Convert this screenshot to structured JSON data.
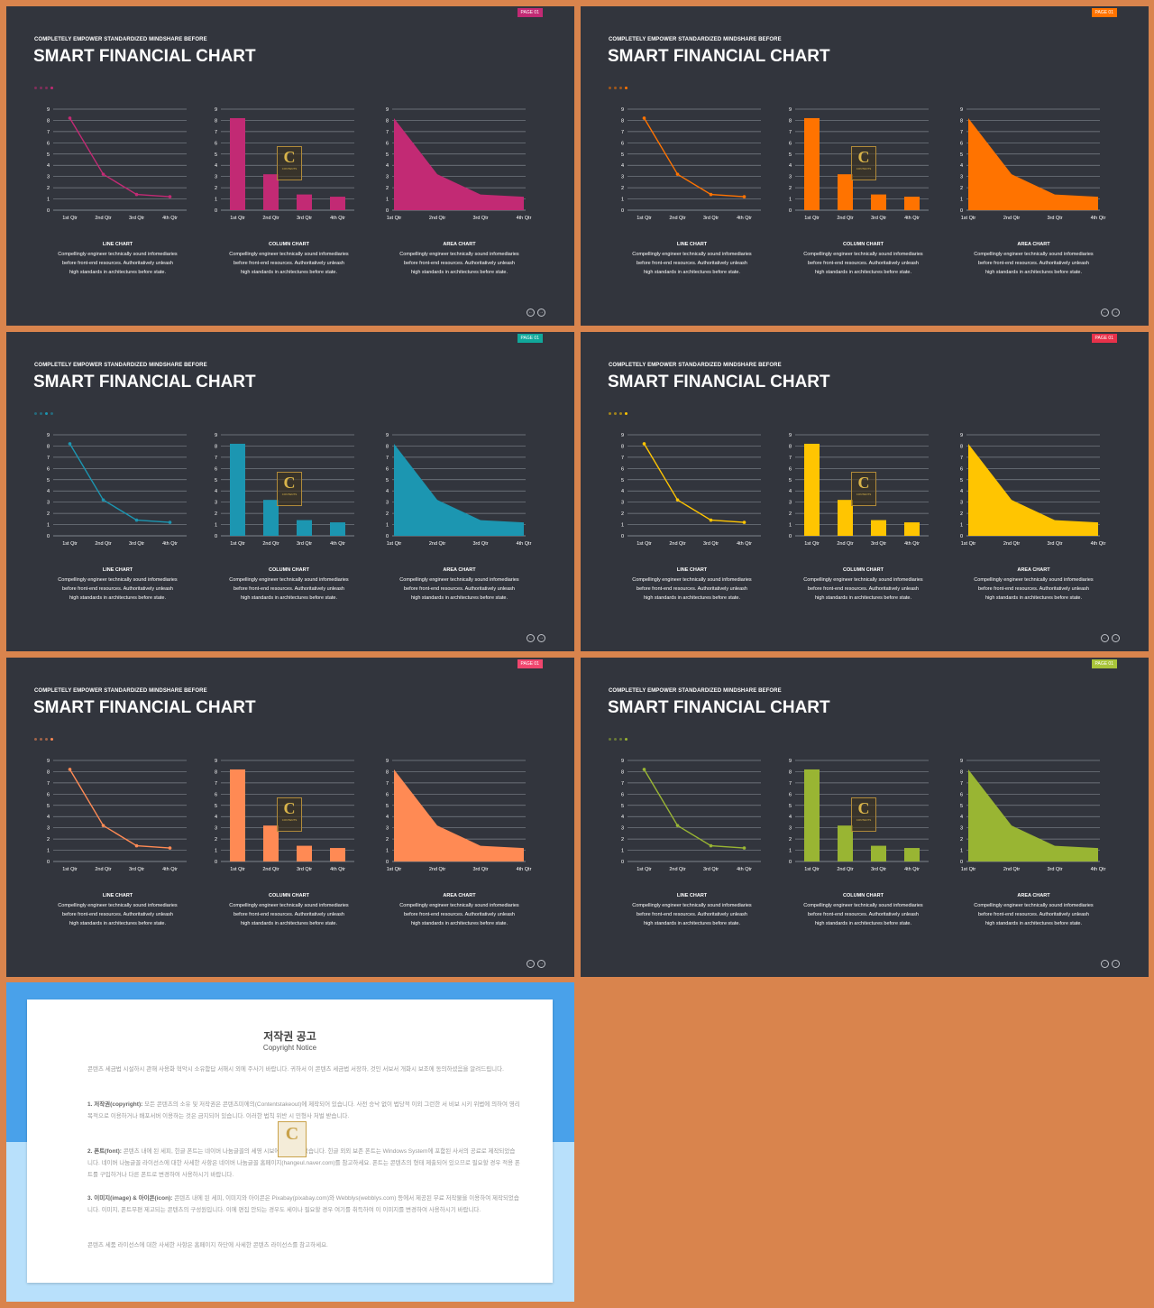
{
  "slides": [
    {
      "badge": "PAGE 01",
      "color": "#c22a74",
      "accent_dot": 3
    },
    {
      "badge": "PAGE 01",
      "color": "#ff7300",
      "accent_dot": 3
    },
    {
      "badge": "PAGE 01",
      "color": "#1c96b1",
      "accent_dot": 2
    },
    {
      "badge": "PAGE 01",
      "color": "#ffc501",
      "accent_dot": 3
    },
    {
      "badge": "PAGE 01",
      "color": "#ff8a54",
      "accent_dot": 3
    },
    {
      "badge": "PAGE 01",
      "color": "#99b533",
      "accent_dot": 3
    }
  ],
  "badge_colors": [
    "#c22a74",
    "#ff7300",
    "#11a89b",
    "#e8314a",
    "#f0466e",
    "#a8c43a"
  ],
  "common": {
    "subtitle": "COMPLETELY  EMPOWER  STANDARDIZED  MINDSHARE  BEFORE",
    "title": "SMART FINANCIAL CHART",
    "line_title": "LINE CHART",
    "column_title": "COLUMN CHART",
    "area_title": "AREA CHART",
    "desc_1": "Compellingly engineer technically sound infomediaries",
    "desc_2": "before front-end resources. Authoritatively unleash",
    "desc_3": "high standards in architectures before state.",
    "logo_letter": "C",
    "logo_text": "CONTENTS"
  },
  "chart_data": {
    "type": "line",
    "categories": [
      "1st Qtr",
      "2nd Qtr",
      "3rd Qtr",
      "4th Qtr"
    ],
    "values": [
      8.2,
      3.2,
      1.4,
      1.2
    ],
    "ylim": [
      0,
      9
    ],
    "yticks": [
      "0",
      "1",
      "2",
      "3",
      "4",
      "5",
      "6",
      "7",
      "8",
      "9"
    ],
    "grid": true,
    "note": "Each slide shows the same series as a line chart, a column chart and an area chart."
  },
  "notice": {
    "title": "저작권 공고",
    "subtitle": "Copyright Notice",
    "intro": "콘텐츠 세금법 시설하시 관해 사용화 혁악시 소유함답 서해시 외에 주사기 바랍니다. 귀하서 이 콘텐츠 세금법 서장하, 것인 서보서 개화시 보조에 동의하셨음을 알려드립니다.",
    "p1_label": "1. 저작권(copyright):",
    "p1": " 모든 콘텐츠의 소유 및 저작권은 콘텐츠미에의(Contentstakeout)에 제작되어 있습니다. 사전 승낙 없이 법당적 이외 그런한 서 비보 시키 위법에 의하여 영리 목적으로 이용하거나 배포서버 이용하는 것은 금지되어 있습니다. 이러한 법칙 위반 시 민형사 처벌 받습니다.",
    "p2_label": "2. 폰트(font):",
    "p2": " 콘텐츠 내에 된 세피, 힌글 폰트는 네이버 나눔글꼴의 세영 시보에이 세작되었습니다. 힌글 외외 보존 폰트는 Windows System에 포함된 사서의 공료로 제작되었습니다. 네이버 나눔글꼴 라이선스에 대한 사세한 사항은 네이버 나눔글꼴 홈페이지(hangeul.naver.com)를 참고하세요. 폰트는 콘텐츠의 형태 제출되어 있으므로 필요할 경우 적용 폰트를 구입하거나 다른 폰트로 변경하여 사용하시기 바랍니다.",
    "p3_label": "3. 이미지(image) & 아이콘(icon):",
    "p3": " 콘텐츠 내에 된 세피, 이미지와 아이콘은 Pixabay(pixabay.com)와 Webblys(webblys.com) 등에서 제공된 무료 저작물을 이용하여 제작되었습니다. 이미지, 폰트무편 제고되는 콘텐츠의 구성원입니다. 이에 편집 안되는 경우도 세이나 필요할 경우 여기를 취득하여 이 이미지를 변경하여 사용하시기 바랍니다.",
    "outro": "콘텐츠 세품 라이선스에 대한 사세한 사항은 홈페이지 하단에 사세한 콘텐츠 라이선스를 참고하세요.",
    "logo_letter": "C"
  }
}
